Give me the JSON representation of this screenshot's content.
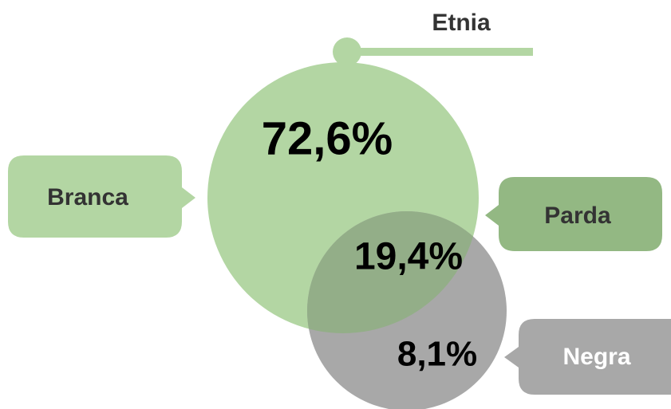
{
  "title": "Etnia",
  "groups": [
    {
      "label": "Branca",
      "percent": "72,6%"
    },
    {
      "label": "Parda",
      "percent": "19,4%"
    },
    {
      "label": "Negra",
      "percent": "8,1%"
    }
  ]
}
